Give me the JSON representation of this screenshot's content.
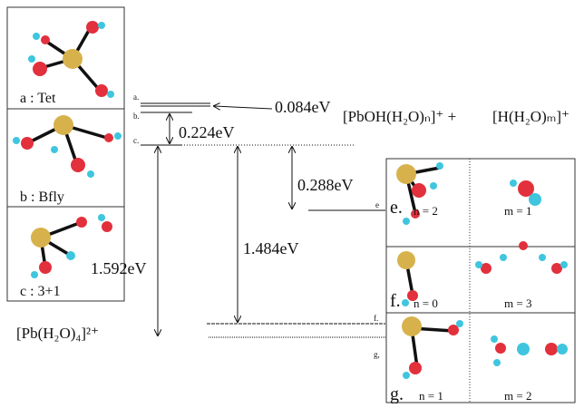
{
  "left_panels": [
    {
      "label": "a : Tet"
    },
    {
      "label": "b : Bfly"
    },
    {
      "label": "c : 3+1"
    }
  ],
  "levels": {
    "a": "a.",
    "b": "b.",
    "c": "c.",
    "e": "e",
    "f": "f.",
    "g": "g,"
  },
  "energies": {
    "ab": "0.084eV",
    "bc": "0.224eV",
    "ce": "0.288eV",
    "cf": "1.484eV",
    "cg": "1.592eV"
  },
  "reactant": "[Pb(H₂O)₄]²⁺",
  "products": {
    "left": "[PbOH(H₂O)ₙ]⁺ +",
    "right": "[H(H₂O)ₘ]⁺"
  },
  "right_panels": [
    {
      "label": "e.",
      "n": "n = 2",
      "m": "m = 1"
    },
    {
      "label": "f.",
      "n": "n = 0",
      "m": "m = 3"
    },
    {
      "label": "g.",
      "n": "n = 1",
      "m": "m = 2"
    }
  ]
}
